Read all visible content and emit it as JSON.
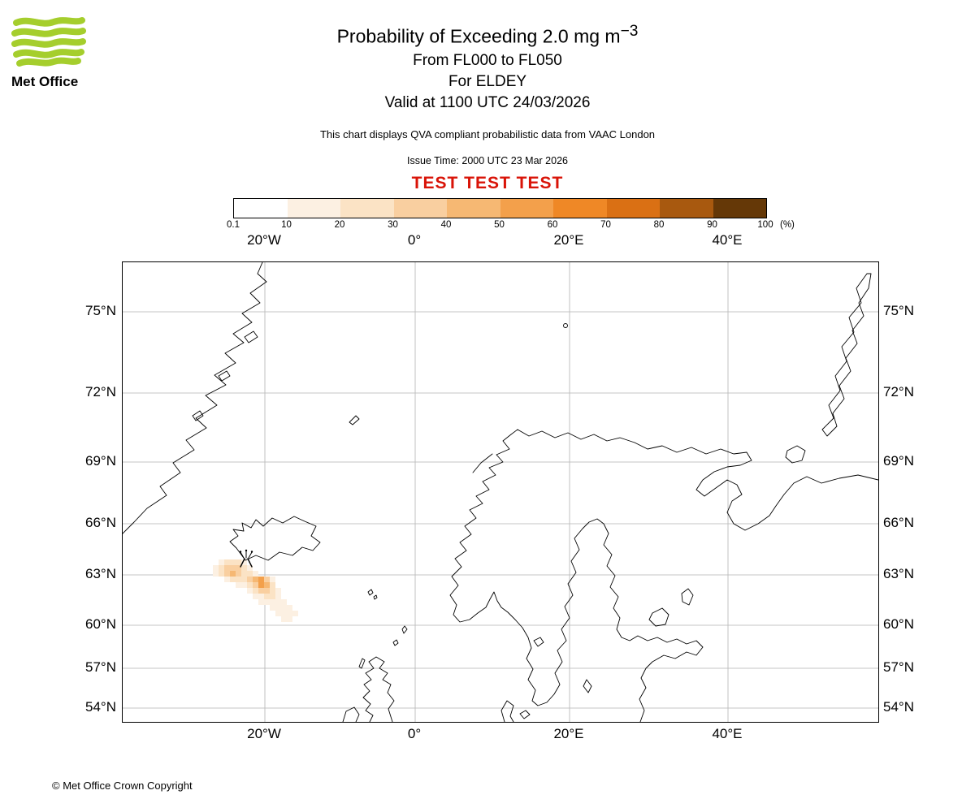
{
  "logo": {
    "brand": "Met Office"
  },
  "colors": {
    "test_red": "#d91408",
    "logo_green": "#a5ce2d",
    "grid_gray": "#b3b3b3",
    "coast_black": "#000000"
  },
  "header": {
    "title_main": "Probability of Exceeding 2.0 mg m",
    "title_sup": "−3",
    "line_fl": "From FL000 to FL050",
    "line_for": "For ELDEY",
    "line_valid": "Valid at 1100 UTC 24/03/2026",
    "qva_note": "This chart displays QVA compliant probabilistic data from VAAC London",
    "issue_time": "Issue Time: 2000 UTC 23 Mar 2026",
    "test_banner": "TEST TEST TEST"
  },
  "colorbar": {
    "tick_labels": [
      "0.1",
      "10",
      "20",
      "30",
      "40",
      "50",
      "60",
      "70",
      "80",
      "90",
      "100"
    ],
    "unit_label": "(%)",
    "segment_colors": [
      "#ffffff",
      "#fcf0e2",
      "#fbe3c5",
      "#f9cfa0",
      "#f6b873",
      "#f3a04b",
      "#ef8826",
      "#da7014",
      "#a8590f",
      "#653807"
    ]
  },
  "map": {
    "lon_labels": [
      "20°W",
      "0°",
      "20°E",
      "40°E"
    ],
    "lat_labels": [
      "75°N",
      "72°N",
      "69°N",
      "66°N",
      "63°N",
      "60°N",
      "57°N",
      "54°N"
    ],
    "volcano_name": "ELDEY"
  },
  "footer": {
    "copyright": "© Met Office Crown Copyright"
  },
  "chart_data": {
    "type": "heatmap",
    "title": "Probability of Exceeding 2.0 mg m−3",
    "flight_levels": "From FL000 to FL050",
    "volcano": "ELDEY",
    "valid_time": "1100 UTC 24/03/2026",
    "issue_time": "2000 UTC 23 Mar 2026",
    "source": "QVA compliant probabilistic data from VAAC London",
    "legend_percent_ticks": [
      0.1,
      10,
      20,
      30,
      40,
      50,
      60,
      70,
      80,
      90,
      100
    ],
    "lon_gridlines_deg": [
      -20,
      0,
      20,
      40
    ],
    "lat_gridlines_deg": [
      75,
      72,
      69,
      66,
      63,
      60,
      57,
      54
    ],
    "plume_description": "Low probability ash plume (mostly 10–30%, local maxima ~50%) extending southeast from Eldey volcano, SW Iceland, between ~64°N and ~60.5°N",
    "plume_cells": [
      [
        118,
        366,
        1
      ],
      [
        125,
        366,
        2
      ],
      [
        132,
        366,
        2
      ],
      [
        139,
        366,
        2
      ],
      [
        146,
        366,
        1
      ],
      [
        111,
        373,
        1
      ],
      [
        118,
        373,
        2
      ],
      [
        125,
        373,
        3
      ],
      [
        132,
        373,
        3
      ],
      [
        139,
        373,
        3
      ],
      [
        146,
        373,
        2
      ],
      [
        153,
        373,
        1
      ],
      [
        111,
        380,
        1
      ],
      [
        118,
        380,
        2
      ],
      [
        125,
        380,
        3
      ],
      [
        132,
        380,
        4
      ],
      [
        139,
        380,
        3
      ],
      [
        146,
        380,
        2
      ],
      [
        153,
        380,
        2
      ],
      [
        160,
        380,
        1
      ],
      [
        125,
        387,
        1
      ],
      [
        132,
        387,
        2
      ],
      [
        139,
        387,
        2
      ],
      [
        146,
        387,
        2
      ],
      [
        153,
        387,
        3
      ],
      [
        160,
        387,
        4
      ],
      [
        167,
        387,
        5
      ],
      [
        174,
        387,
        3
      ],
      [
        181,
        387,
        1
      ],
      [
        139,
        394,
        1
      ],
      [
        146,
        394,
        1
      ],
      [
        153,
        394,
        2
      ],
      [
        160,
        394,
        3
      ],
      [
        167,
        394,
        5
      ],
      [
        174,
        394,
        4
      ],
      [
        181,
        394,
        2
      ],
      [
        153,
        401,
        1
      ],
      [
        160,
        401,
        2
      ],
      [
        167,
        401,
        3
      ],
      [
        174,
        401,
        3
      ],
      [
        181,
        401,
        2
      ],
      [
        188,
        401,
        1
      ],
      [
        160,
        408,
        1
      ],
      [
        167,
        408,
        1
      ],
      [
        174,
        408,
        2
      ],
      [
        181,
        408,
        2
      ],
      [
        188,
        408,
        1
      ],
      [
        167,
        415,
        1
      ],
      [
        174,
        415,
        1
      ],
      [
        181,
        415,
        1
      ],
      [
        188,
        415,
        1
      ],
      [
        195,
        415,
        1
      ],
      [
        181,
        422,
        1
      ],
      [
        188,
        422,
        1
      ],
      [
        195,
        422,
        1
      ],
      [
        202,
        422,
        1
      ],
      [
        188,
        429,
        1
      ],
      [
        195,
        429,
        1
      ],
      [
        202,
        429,
        1
      ],
      [
        209,
        429,
        1
      ],
      [
        195,
        436,
        1
      ],
      [
        202,
        436,
        1
      ]
    ]
  }
}
